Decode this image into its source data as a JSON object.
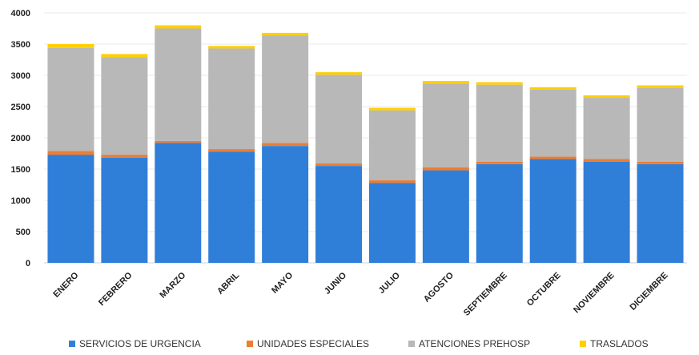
{
  "chart_data": {
    "type": "bar",
    "stacked": true,
    "title": "",
    "xlabel": "",
    "ylabel": "",
    "ylim": [
      0,
      4000
    ],
    "yticks": [
      0,
      500,
      1000,
      1500,
      2000,
      2500,
      3000,
      3500,
      4000
    ],
    "grid": true,
    "legend_position": "bottom",
    "categories": [
      "ENERO",
      "FEBRERO",
      "MARZO",
      "ABRIL",
      "MAYO",
      "JUNIO",
      "JULIO",
      "AGOSTO",
      "SEPTIEMBRE",
      "OCTUBRE",
      "NOVIEMBRE",
      "DICIEMBRE"
    ],
    "series": [
      {
        "name": "SERVICIOS DE URGENCIA",
        "color": "#2f7fd8",
        "values": [
          1730,
          1680,
          1920,
          1780,
          1870,
          1550,
          1280,
          1480,
          1580,
          1660,
          1620,
          1580
        ]
      },
      {
        "name": "UNIDADES ESPECIALES",
        "color": "#ed7d31",
        "values": [
          60,
          50,
          30,
          40,
          50,
          40,
          40,
          50,
          40,
          40,
          40,
          40
        ]
      },
      {
        "name": "ATENCIONES PREHOSP",
        "color": "#b8b8b8",
        "values": [
          1650,
          1560,
          1800,
          1610,
          1720,
          1420,
          1120,
          1340,
          1230,
          1070,
          980,
          1180
        ]
      },
      {
        "name": "TRASLADOS",
        "color": "#ffd000",
        "values": [
          60,
          50,
          50,
          40,
          40,
          40,
          40,
          40,
          40,
          40,
          40,
          40
        ]
      }
    ]
  }
}
